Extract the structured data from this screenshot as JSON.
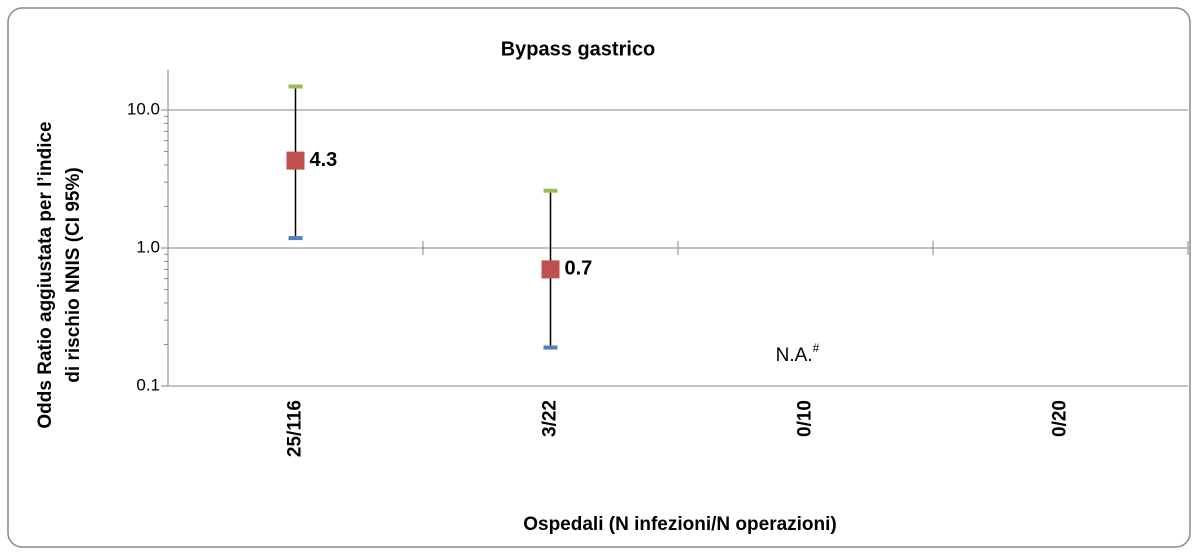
{
  "chart_data": {
    "type": "errorbar",
    "title": "Bypass gastrico",
    "x_label": "Ospedali (N infezioni/N operazioni)",
    "y_label": [
      "Odds Ratio aggiustata per l’indice",
      "di rischio NNIS (CI 95%)"
    ],
    "categories": [
      "25/116",
      "3/22",
      "0/10",
      "0/20"
    ],
    "values": [
      4.3,
      0.7,
      null,
      null
    ],
    "ci_low": [
      1.18,
      0.19,
      null,
      null
    ],
    "ci_high": [
      14.8,
      2.6,
      null,
      null
    ],
    "marker_color": "#c0504d",
    "high_color": "#9bbb59",
    "low_color": "#4f81bd",
    "log_y": true,
    "ylim": [
      0.1,
      19.5
    ],
    "yticks": [
      {
        "value": 0.1,
        "label": "0.1"
      },
      {
        "value": 1,
        "label": "1.0"
      },
      {
        "value": 10,
        "label": "10.0"
      }
    ],
    "x_axis_at": 1,
    "grid": true,
    "annotation": "N.A.",
    "annotation_mark": "#"
  }
}
